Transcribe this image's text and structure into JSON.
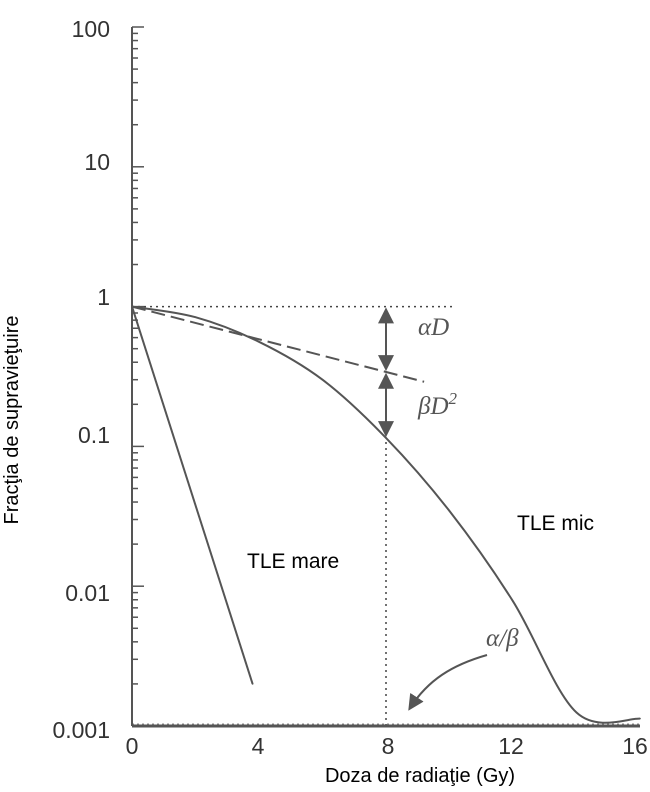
{
  "chart_data": {
    "type": "line",
    "xlabel": "Doza de radiaţie (Gy)",
    "ylabel": "Fracţia de supravieţuire",
    "x_ticks": [
      "0",
      "4",
      "8",
      "12",
      "16"
    ],
    "y_ticks": [
      "0.001",
      "0.01",
      "0.1",
      "1",
      "10",
      "100"
    ],
    "xlim": [
      0,
      16
    ],
    "ylim": [
      0.001,
      100
    ],
    "y_scale": "log",
    "series": [
      {
        "name": "TLE mare",
        "x": [
          0,
          3.8
        ],
        "y": [
          1,
          0.002
        ],
        "style": "solid"
      },
      {
        "name": "TLE mic",
        "x": [
          0,
          2,
          4,
          6,
          8,
          10,
          12,
          14,
          16
        ],
        "y": [
          1,
          0.84,
          0.56,
          0.3,
          0.115,
          0.0345,
          0.0078,
          0.00125,
          0.00113
        ],
        "style": "solid"
      }
    ],
    "alpha_line": {
      "x": [
        0,
        9.2
      ],
      "y": [
        1,
        0.29
      ],
      "style": "dashed"
    },
    "reference_lines": [
      {
        "kind": "horizontal",
        "y": 1,
        "x": [
          0,
          10.2
        ],
        "style": "dotted"
      },
      {
        "kind": "vertical",
        "x": 8,
        "y": [
          0.001,
          0.115
        ],
        "style": "dotted"
      }
    ],
    "annotations": {
      "alpha_d": "αD",
      "beta_d2": "βD",
      "beta_d2_sup": "2",
      "alpha_beta": "α/β",
      "tle_mare": "TLE mare",
      "tle_mic": "TLE mic"
    },
    "grid": false,
    "colors": {
      "curves": "#555555",
      "axes": "#555555",
      "labels": "#333333"
    }
  }
}
